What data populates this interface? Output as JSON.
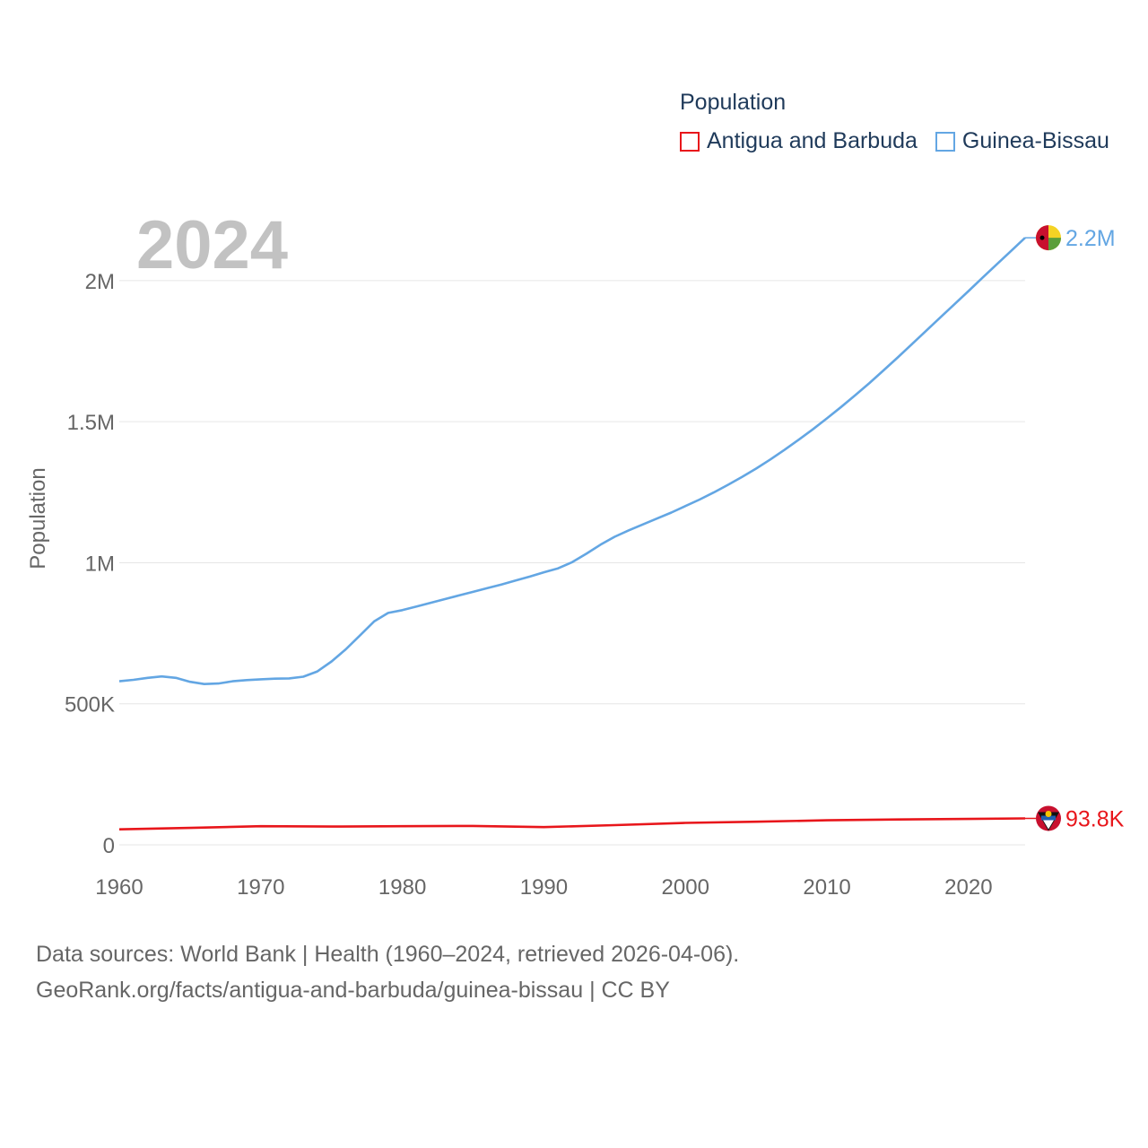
{
  "legend": {
    "title": "Population",
    "items": [
      {
        "label": "Antigua and Barbuda",
        "color": "#e8161b"
      },
      {
        "label": "Guinea-Bissau",
        "color": "#63a6e3"
      }
    ]
  },
  "year_label": "2024",
  "source": {
    "line1": "Data sources: World Bank | Health (1960–2024, retrieved 2026-04-06).",
    "line2": "GeoRank.org/facts/antigua-and-barbuda/guinea-bissau | CC BY"
  },
  "chart_data": {
    "type": "line",
    "title": "",
    "xlabel": "",
    "ylabel": "Population",
    "xlim": [
      1960,
      2024
    ],
    "ylim": [
      0,
      2200000
    ],
    "x_ticks": [
      1960,
      1970,
      1980,
      1990,
      2000,
      2010,
      2020
    ],
    "x_tick_labels": [
      "1960",
      "1970",
      "1980",
      "1990",
      "2000",
      "2010",
      "2020"
    ],
    "y_ticks": [
      0,
      500000,
      1000000,
      1500000,
      2000000
    ],
    "y_tick_labels": [
      "0",
      "500K",
      "1M",
      "1.5M",
      "2M"
    ],
    "series": [
      {
        "name": "Guinea-Bissau",
        "color": "#63a6e3",
        "end_label": "2.2M",
        "x": [
          1960,
          1961,
          1962,
          1963,
          1964,
          1965,
          1966,
          1967,
          1968,
          1969,
          1970,
          1971,
          1972,
          1973,
          1974,
          1975,
          1976,
          1977,
          1978,
          1979,
          1980,
          1981,
          1982,
          1983,
          1984,
          1985,
          1986,
          1987,
          1988,
          1989,
          1990,
          1991,
          1992,
          1993,
          1994,
          1995,
          1996,
          1997,
          1998,
          1999,
          2000,
          2001,
          2002,
          2003,
          2004,
          2005,
          2006,
          2007,
          2008,
          2009,
          2010,
          2011,
          2012,
          2013,
          2014,
          2015,
          2016,
          2017,
          2018,
          2019,
          2020,
          2021,
          2022,
          2023,
          2024
        ],
        "values": [
          580000,
          585000,
          592000,
          597000,
          592000,
          578000,
          570000,
          572000,
          580000,
          584000,
          587000,
          589000,
          590000,
          596000,
          615000,
          650000,
          693000,
          742000,
          792000,
          822000,
          832000,
          845000,
          858000,
          871000,
          884000,
          897000,
          910000,
          923000,
          937000,
          951000,
          966000,
          980000,
          1002000,
          1032000,
          1064000,
          1092000,
          1115000,
          1136000,
          1157000,
          1178000,
          1201000,
          1224000,
          1249000,
          1276000,
          1304000,
          1334000,
          1366000,
          1400000,
          1436000,
          1473000,
          1512000,
          1552000,
          1594000,
          1637000,
          1682000,
          1728000,
          1775000,
          1822000,
          1869000,
          1916000,
          1963000,
          2011000,
          2058000,
          2105000,
          2152000
        ]
      },
      {
        "name": "Antigua and Barbuda",
        "color": "#e8161b",
        "end_label": "93.8K",
        "x": [
          1960,
          1965,
          1970,
          1975,
          1980,
          1985,
          1990,
          1995,
          2000,
          2005,
          2010,
          2015,
          2020,
          2024
        ],
        "values": [
          55000,
          60000,
          66000,
          65000,
          66000,
          67000,
          63000,
          70000,
          78000,
          82000,
          87000,
          90000,
          92000,
          93800
        ]
      }
    ]
  }
}
